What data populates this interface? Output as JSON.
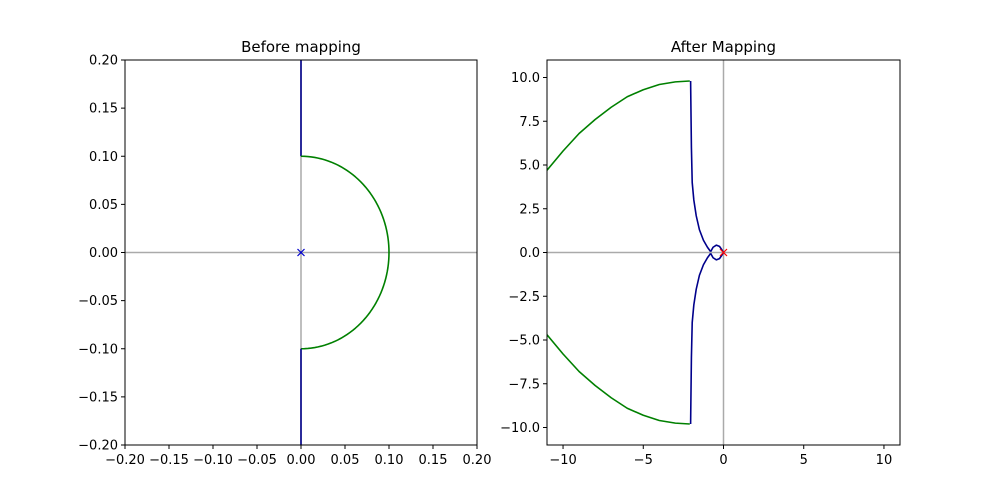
{
  "chart_data": [
    {
      "type": "line",
      "title": "Before mapping",
      "xlabel": "",
      "ylabel": "",
      "xlim": [
        -0.2,
        0.2
      ],
      "ylim": [
        -0.2,
        0.2
      ],
      "xticks": [
        -0.2,
        -0.15,
        -0.1,
        -0.05,
        0.0,
        0.05,
        0.1,
        0.15,
        0.2
      ],
      "yticks": [
        -0.2,
        -0.15,
        -0.1,
        -0.05,
        0.0,
        0.05,
        0.1,
        0.15,
        0.2
      ],
      "xtick_labels": [
        "−0.20",
        "−0.15",
        "−0.10",
        "−0.05",
        "0.00",
        "0.05",
        "0.10",
        "0.15",
        "0.20"
      ],
      "ytick_labels": [
        "−0.20",
        "−0.15",
        "−0.10",
        "−0.05",
        "0.00",
        "0.05",
        "0.10",
        "0.15",
        "0.20"
      ],
      "grid": false,
      "axis_lines": {
        "color": "#aaaaaa",
        "x0": true,
        "y0": true
      },
      "series": [
        {
          "color": "#00008b",
          "kind": "line",
          "points": [
            [
              0,
              0.2
            ],
            [
              0,
              0.1
            ]
          ]
        },
        {
          "color": "#008000",
          "kind": "arc",
          "center": [
            0,
            0
          ],
          "radius": 0.1,
          "from_deg": 90,
          "to_deg": -90
        },
        {
          "color": "#00008b",
          "kind": "line",
          "points": [
            [
              0,
              -0.1
            ],
            [
              0,
              -0.2
            ]
          ]
        }
      ],
      "markers": [
        {
          "x": 0,
          "y": 0,
          "symbol": "x",
          "color": "#0000cc"
        }
      ]
    },
    {
      "type": "line",
      "title": "After Mapping",
      "xlabel": "",
      "ylabel": "",
      "xlim": [
        -11,
        11
      ],
      "ylim": [
        -11,
        11
      ],
      "xticks": [
        -10,
        -5,
        0,
        5,
        10
      ],
      "yticks": [
        -10,
        -7.5,
        -5,
        -2.5,
        0,
        2.5,
        5,
        7.5,
        10
      ],
      "xtick_labels": [
        "−10",
        "−5",
        "0",
        "5",
        "10"
      ],
      "ytick_labels": [
        "−10.0",
        "−7.5",
        "−5.0",
        "−2.5",
        "0.0",
        "2.5",
        "5.0",
        "7.5",
        "10.0"
      ],
      "grid": false,
      "axis_lines": {
        "color": "#aaaaaa",
        "x0": true,
        "y0": true
      },
      "series": [
        {
          "color": "#008000",
          "kind": "line",
          "points": [
            [
              -11,
              4.7
            ],
            [
              -10,
              5.8
            ],
            [
              -9,
              6.8
            ],
            [
              -8,
              7.6
            ],
            [
              -7,
              8.3
            ],
            [
              -6,
              8.9
            ],
            [
              -5,
              9.3
            ],
            [
              -4,
              9.6
            ],
            [
              -3,
              9.75
            ],
            [
              -2.1,
              9.8
            ]
          ]
        },
        {
          "color": "#00008b",
          "kind": "line",
          "points": [
            [
              -2.05,
              9.8
            ],
            [
              -2.0,
              6.0
            ],
            [
              -1.95,
              4.0
            ],
            [
              -1.85,
              3.0
            ],
            [
              -1.7,
              2.1
            ],
            [
              -1.5,
              1.3
            ],
            [
              -1.25,
              0.7
            ],
            [
              -1.0,
              0.3
            ],
            [
              -0.8,
              0.05
            ]
          ]
        },
        {
          "color": "#00008b",
          "kind": "line",
          "points": [
            [
              -0.8,
              0.05
            ],
            [
              -0.65,
              0.3
            ],
            [
              -0.45,
              0.42
            ],
            [
              -0.25,
              0.35
            ],
            [
              -0.1,
              0.15
            ],
            [
              0.0,
              0.0
            ],
            [
              -0.1,
              -0.15
            ],
            [
              -0.25,
              -0.35
            ],
            [
              -0.45,
              -0.42
            ],
            [
              -0.65,
              -0.3
            ],
            [
              -0.8,
              -0.05
            ]
          ]
        },
        {
          "color": "#00008b",
          "kind": "line",
          "points": [
            [
              -0.8,
              -0.05
            ],
            [
              -1.0,
              -0.3
            ],
            [
              -1.25,
              -0.7
            ],
            [
              -1.5,
              -1.3
            ],
            [
              -1.7,
              -2.1
            ],
            [
              -1.85,
              -3.0
            ],
            [
              -1.95,
              -4.0
            ],
            [
              -2.0,
              -6.0
            ],
            [
              -2.05,
              -9.8
            ]
          ]
        },
        {
          "color": "#008000",
          "kind": "line",
          "points": [
            [
              -2.1,
              -9.8
            ],
            [
              -3,
              -9.75
            ],
            [
              -4,
              -9.6
            ],
            [
              -5,
              -9.3
            ],
            [
              -6,
              -8.9
            ],
            [
              -7,
              -8.3
            ],
            [
              -8,
              -7.6
            ],
            [
              -9,
              -6.8
            ],
            [
              -10,
              -5.8
            ],
            [
              -11,
              -4.7
            ]
          ]
        }
      ],
      "markers": [
        {
          "x": 0,
          "y": 0,
          "symbol": "x",
          "color": "#ff0000"
        }
      ]
    }
  ]
}
